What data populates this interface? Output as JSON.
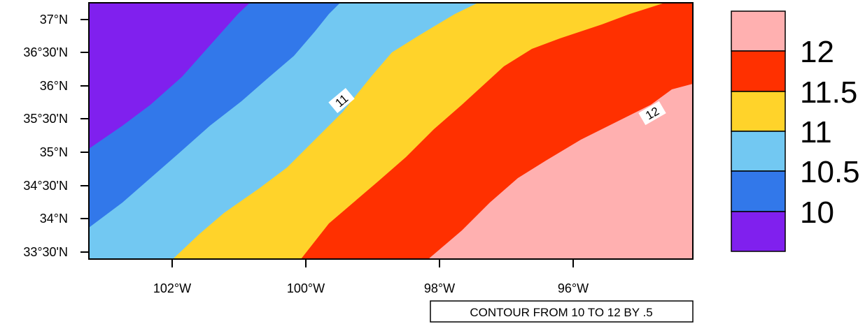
{
  "map": {
    "y_ticks": [
      {
        "lat": 37.0,
        "label": "37°N"
      },
      {
        "lat": 36.5,
        "label": "36°30'N"
      },
      {
        "lat": 36.0,
        "label": "36°N"
      },
      {
        "lat": 35.5,
        "label": "35°30'N"
      },
      {
        "lat": 35.0,
        "label": "35°N"
      },
      {
        "lat": 34.5,
        "label": "34°30'N"
      },
      {
        "lat": 34.0,
        "label": "34°N"
      },
      {
        "lat": 33.5,
        "label": "33°30'N"
      }
    ],
    "x_ticks": [
      {
        "lon": -102,
        "label": "102°W"
      },
      {
        "lon": -100,
        "label": "100°W"
      },
      {
        "lon": -98,
        "label": "98°W"
      },
      {
        "lon": -96,
        "label": "96°W"
      }
    ],
    "contour_labels": [
      {
        "text": "11"
      },
      {
        "text": "12"
      }
    ],
    "info_text": "CONTOUR FROM 10 TO 12 BY .5"
  },
  "legend": {
    "colors": [
      "#FFB0B0",
      "#FF3000",
      "#FFD32A",
      "#72C8F2",
      "#3278EA",
      "#8020EE"
    ],
    "labels": [
      "12",
      "11.5",
      "11",
      "10.5",
      "10"
    ]
  },
  "chart_data": {
    "type": "filled-contour map",
    "contour_levels": [
      10,
      10.5,
      11,
      11.5,
      12
    ],
    "level_colors": {
      "below_10": "#8020EE",
      "10_to_10.5": "#3278EA",
      "10.5_to_11": "#72C8F2",
      "11_to_11.5": "#FFD32A",
      "11.5_to_12": "#FF3000",
      "above_12": "#FFB0B0"
    },
    "lat_range": [
      33.4,
      37.25
    ],
    "lon_range": [
      -103.25,
      -94.25
    ]
  }
}
